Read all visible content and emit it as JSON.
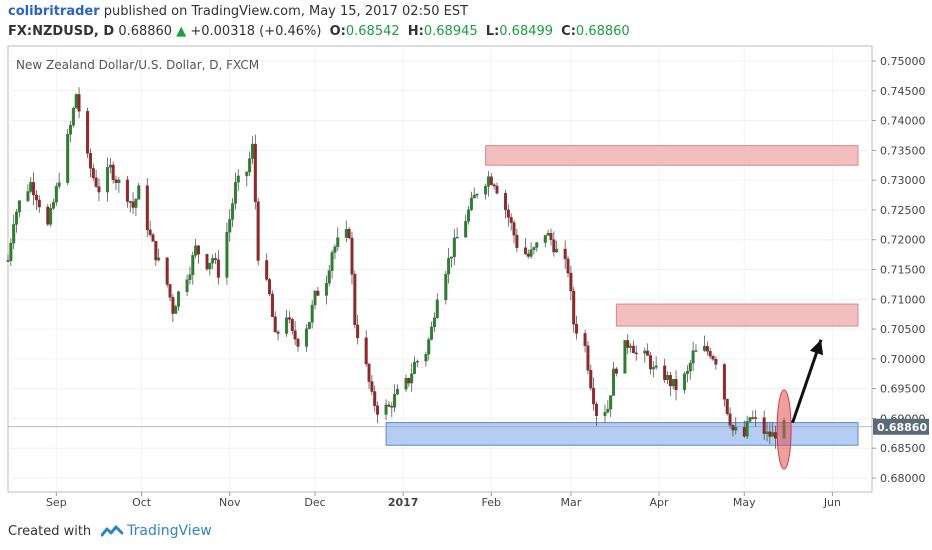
{
  "header": {
    "author": "colibritrader",
    "published": "published on TradingView.com, May 15, 2017 02:50 EST",
    "symbol": "FX:NZDUSD, D",
    "last": "0.68860",
    "change": "+0.00318 (+0.46%)",
    "open_label": "O:",
    "open": "0.68542",
    "high_label": "H:",
    "high": "0.68945",
    "low_label": "L:",
    "low": "0.68499",
    "close_label": "C:",
    "close": "0.68860"
  },
  "footer": {
    "created": "Created with",
    "brand": "TradingView"
  },
  "colors": {
    "up": "#2e7d32",
    "down": "#8b2a2a",
    "demand": "#a8c4f0",
    "supply": "#f1b3b3",
    "arrow": "#111111",
    "marker": "#e05252"
  },
  "chart_data": {
    "type": "candlestick",
    "title": "New Zealand Dollar/U.S. Dollar, D, FXCM",
    "x_labels": [
      "Sep",
      "Oct",
      "Nov",
      "Dec",
      "2017",
      "Feb",
      "Mar",
      "Apr",
      "May",
      "Jun"
    ],
    "y_ticks": [
      "0.75000",
      "0.74500",
      "0.74000",
      "0.73500",
      "0.73000",
      "0.72500",
      "0.72000",
      "0.71500",
      "0.71000",
      "0.70500",
      "0.70000",
      "0.69500",
      "0.69000",
      "0.68500",
      "0.68000"
    ],
    "ylim": [
      0.6775,
      0.7522
    ],
    "last_price_label": "0.68860",
    "last_price": 0.6886,
    "zones": [
      {
        "kind": "supply",
        "from": "2017-01-30",
        "to": "2017-06-10",
        "low": 0.7325,
        "high": 0.7358
      },
      {
        "kind": "supply",
        "from": "2017-03-17",
        "to": "2017-06-10",
        "low": 0.7055,
        "high": 0.7092
      },
      {
        "kind": "demand",
        "from": "2016-12-26",
        "to": "2017-06-10",
        "low": 0.6855,
        "high": 0.6893
      }
    ],
    "arrow": {
      "from_date": "2017-05-18",
      "from_price": 0.6893,
      "to_date": "2017-05-28",
      "to_price": 0.7032
    },
    "marker": {
      "date": "2017-05-15",
      "low": 0.6815,
      "high": 0.6948
    },
    "daily_closes": [
      [
        "2016-08-15",
        0.7165
      ],
      [
        "2016-08-17",
        0.7235
      ],
      [
        "2016-08-19",
        0.7262
      ],
      [
        "2016-08-23",
        0.7295
      ],
      [
        "2016-08-25",
        0.7275
      ],
      [
        "2016-08-29",
        0.7222
      ],
      [
        "2016-08-31",
        0.7262
      ],
      [
        "2016-09-02",
        0.7305
      ],
      [
        "2016-09-06",
        0.739
      ],
      [
        "2016-09-08",
        0.7445
      ],
      [
        "2016-09-12",
        0.7335
      ],
      [
        "2016-09-14",
        0.7305
      ],
      [
        "2016-09-16",
        0.7285
      ],
      [
        "2016-09-20",
        0.732
      ],
      [
        "2016-09-22",
        0.7302
      ],
      [
        "2016-09-26",
        0.7275
      ],
      [
        "2016-09-28",
        0.7255
      ],
      [
        "2016-09-30",
        0.7282
      ],
      [
        "2016-10-04",
        0.7205
      ],
      [
        "2016-10-06",
        0.7175
      ],
      [
        "2016-10-10",
        0.7125
      ],
      [
        "2016-10-12",
        0.7082
      ],
      [
        "2016-10-14",
        0.711
      ],
      [
        "2016-10-18",
        0.7152
      ],
      [
        "2016-10-20",
        0.7185
      ],
      [
        "2016-10-24",
        0.716
      ],
      [
        "2016-10-26",
        0.717
      ],
      [
        "2016-10-28",
        0.7145
      ],
      [
        "2016-11-01",
        0.7235
      ],
      [
        "2016-11-03",
        0.729
      ],
      [
        "2016-11-07",
        0.7315
      ],
      [
        "2016-11-09",
        0.7355
      ],
      [
        "2016-11-11",
        0.7175
      ],
      [
        "2016-11-15",
        0.7105
      ],
      [
        "2016-11-17",
        0.7035
      ],
      [
        "2016-11-21",
        0.7075
      ],
      [
        "2016-11-23",
        0.704
      ],
      [
        "2016-11-25",
        0.703
      ],
      [
        "2016-11-29",
        0.7065
      ],
      [
        "2016-12-01",
        0.7105
      ],
      [
        "2016-12-05",
        0.7135
      ],
      [
        "2016-12-07",
        0.7182
      ],
      [
        "2016-12-09",
        0.7195
      ],
      [
        "2016-12-13",
        0.7212
      ],
      [
        "2016-12-15",
        0.7062
      ],
      [
        "2016-12-19",
        0.6985
      ],
      [
        "2016-12-21",
        0.6935
      ],
      [
        "2016-12-23",
        0.6915
      ],
      [
        "2016-12-27",
        0.6918
      ],
      [
        "2016-12-29",
        0.6935
      ],
      [
        "2017-01-03",
        0.6965
      ],
      [
        "2017-01-05",
        0.6992
      ],
      [
        "2017-01-09",
        0.7012
      ],
      [
        "2017-01-11",
        0.705
      ],
      [
        "2017-01-13",
        0.711
      ],
      [
        "2017-01-17",
        0.7165
      ],
      [
        "2017-01-19",
        0.7192
      ],
      [
        "2017-01-23",
        0.7235
      ],
      [
        "2017-01-25",
        0.726
      ],
      [
        "2017-01-27",
        0.7282
      ],
      [
        "2017-01-31",
        0.7305
      ],
      [
        "2017-02-02",
        0.7298
      ],
      [
        "2017-02-06",
        0.7252
      ],
      [
        "2017-02-08",
        0.7225
      ],
      [
        "2017-02-10",
        0.7192
      ],
      [
        "2017-02-14",
        0.7172
      ],
      [
        "2017-02-16",
        0.7182
      ],
      [
        "2017-02-20",
        0.7212
      ],
      [
        "2017-02-22",
        0.72
      ],
      [
        "2017-02-24",
        0.718
      ],
      [
        "2017-02-28",
        0.715
      ],
      [
        "2017-03-02",
        0.706
      ],
      [
        "2017-03-06",
        0.702
      ],
      [
        "2017-03-08",
        0.696
      ],
      [
        "2017-03-10",
        0.691
      ],
      [
        "2017-03-14",
        0.6918
      ],
      [
        "2017-03-16",
        0.6975
      ],
      [
        "2017-03-20",
        0.702
      ],
      [
        "2017-03-22",
        0.703
      ],
      [
        "2017-03-24",
        0.7008
      ],
      [
        "2017-03-28",
        0.7002
      ],
      [
        "2017-03-30",
        0.698
      ],
      [
        "2017-04-03",
        0.6972
      ],
      [
        "2017-04-05",
        0.696
      ],
      [
        "2017-04-07",
        0.6952
      ],
      [
        "2017-04-11",
        0.6975
      ],
      [
        "2017-04-13",
        0.7008
      ],
      [
        "2017-04-17",
        0.7015
      ],
      [
        "2017-04-19",
        0.7012
      ],
      [
        "2017-04-21",
        0.6998
      ],
      [
        "2017-04-25",
        0.6915
      ],
      [
        "2017-04-27",
        0.688
      ],
      [
        "2017-05-01",
        0.687
      ],
      [
        "2017-05-03",
        0.6902
      ],
      [
        "2017-05-05",
        0.6895
      ],
      [
        "2017-05-09",
        0.6872
      ],
      [
        "2017-05-11",
        0.6872
      ],
      [
        "2017-05-15",
        0.6886
      ]
    ]
  }
}
